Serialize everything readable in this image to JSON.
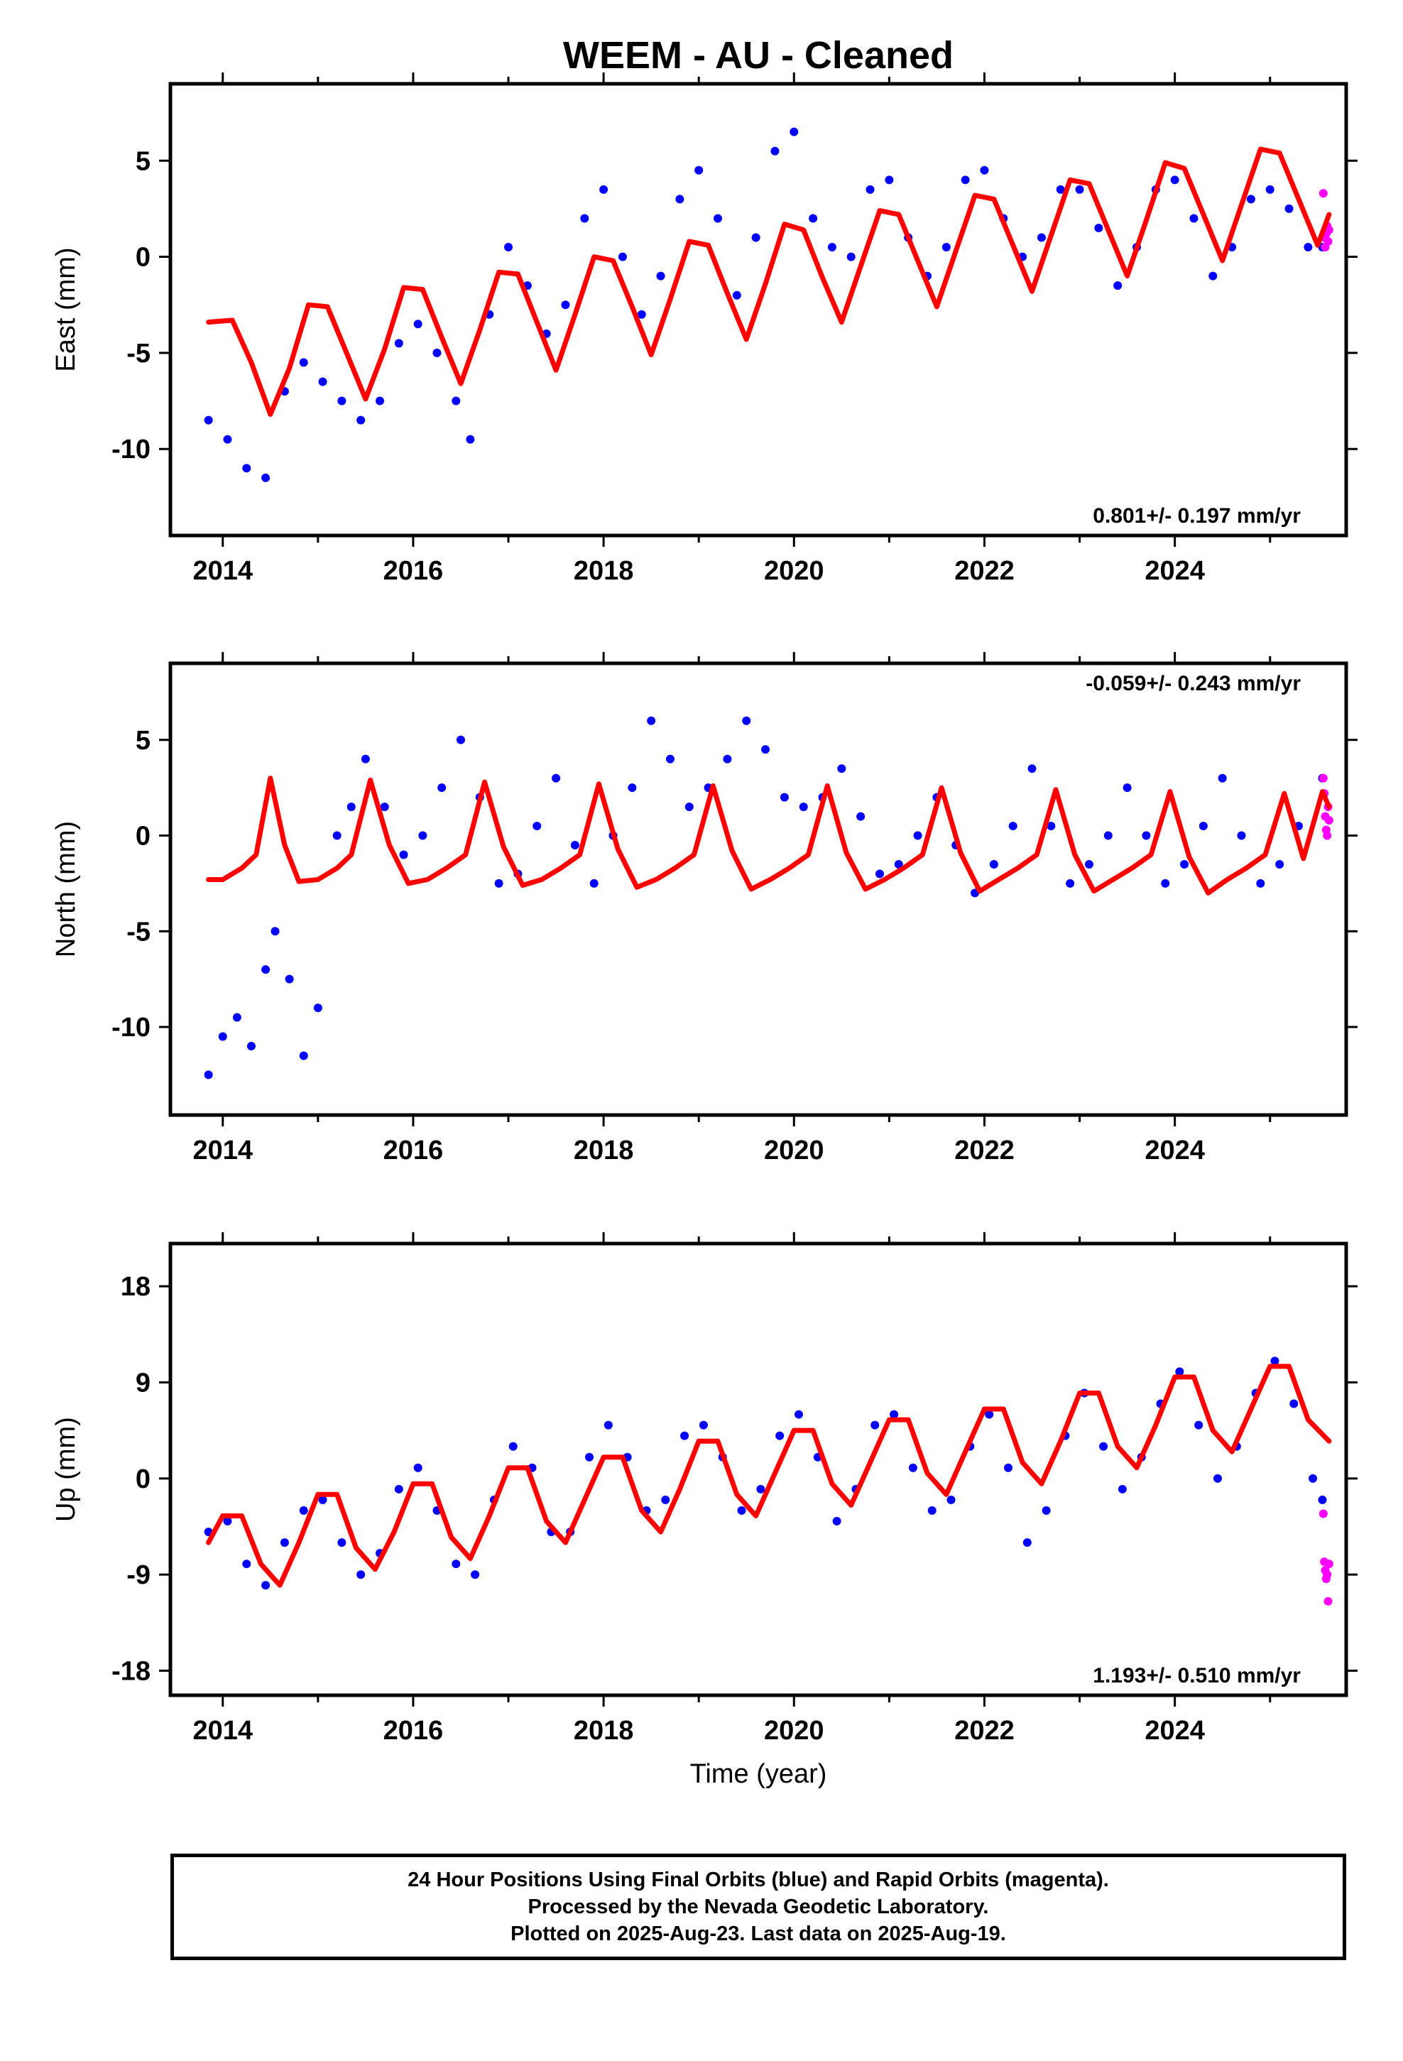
{
  "title": "WEEM  - AU - Cleaned",
  "colors": {
    "final": "#0000ff",
    "rapid": "#ff00ff",
    "model": "#ff0000"
  },
  "xlabel": "Time (year)",
  "caption": [
    "24 Hour Positions Using Final Orbits (blue) and Rapid Orbits (magenta).",
    "Processed by the Nevada Geodetic Laboratory.",
    "Plotted on 2025-Aug-23. Last data on 2025-Aug-19."
  ],
  "chart_data": [
    {
      "type": "scatter",
      "ylabel": "East (mm)",
      "xlim": [
        2013.45,
        2025.8
      ],
      "ylim": [
        -14.5,
        9.0
      ],
      "xticks": [
        2014,
        2016,
        2018,
        2020,
        2022,
        2024
      ],
      "yticks": [
        -10,
        -5,
        0,
        5
      ],
      "rate_label": "0.801+/- 0.197 mm/yr",
      "rate_position": "bottom-right",
      "series": [
        {
          "style": "points",
          "color": "final",
          "x": [
            2013.85,
            2014.05,
            2014.25,
            2014.45,
            2014.65,
            2014.85,
            2015.05,
            2015.25,
            2015.45,
            2015.65,
            2015.85,
            2016.05,
            2016.25,
            2016.45,
            2016.6,
            2016.8,
            2017.0,
            2017.2,
            2017.4,
            2017.6,
            2017.8,
            2018.0,
            2018.2,
            2018.4,
            2018.6,
            2018.8,
            2019.0,
            2019.2,
            2019.4,
            2019.6,
            2019.8,
            2020.0,
            2020.2,
            2020.4,
            2020.6,
            2020.8,
            2021.0,
            2021.2,
            2021.4,
            2021.6,
            2021.8,
            2022.0,
            2022.2,
            2022.4,
            2022.6,
            2022.8,
            2023.0,
            2023.2,
            2023.4,
            2023.6,
            2023.8,
            2024.0,
            2024.2,
            2024.4,
            2024.6,
            2024.8,
            2025.0,
            2025.2,
            2025.4,
            2025.55
          ],
          "y": [
            -8.5,
            -9.5,
            -11.0,
            -11.5,
            -7.0,
            -5.5,
            -6.5,
            -7.5,
            -8.5,
            -7.5,
            -4.5,
            -3.5,
            -5.0,
            -7.5,
            -9.5,
            -3.0,
            0.5,
            -1.5,
            -4.0,
            -2.5,
            2.0,
            3.5,
            0.0,
            -3.0,
            -1.0,
            3.0,
            4.5,
            2.0,
            -2.0,
            1.0,
            5.5,
            6.5,
            2.0,
            0.5,
            0.0,
            3.5,
            4.0,
            1.0,
            -1.0,
            0.5,
            4.0,
            4.5,
            2.0,
            0.0,
            1.0,
            3.5,
            3.5,
            1.5,
            -1.5,
            0.5,
            3.5,
            4.0,
            2.0,
            -1.0,
            0.5,
            3.0,
            3.5,
            2.5,
            0.5,
            0.5
          ]
        },
        {
          "style": "points",
          "color": "rapid",
          "x": [
            2025.56,
            2025.57,
            2025.58,
            2025.59,
            2025.6,
            2025.61,
            2025.62
          ],
          "y": [
            3.3,
            1.0,
            0.5,
            1.2,
            1.6,
            0.8,
            1.4
          ]
        },
        {
          "style": "line",
          "color": "model",
          "x": [
            2013.85,
            2014.1,
            2014.3,
            2014.5,
            2014.7,
            2014.9,
            2015.1,
            2015.3,
            2015.5,
            2015.7,
            2015.9,
            2016.1,
            2016.3,
            2016.5,
            2016.7,
            2016.9,
            2017.1,
            2017.3,
            2017.5,
            2017.7,
            2017.9,
            2018.1,
            2018.3,
            2018.5,
            2018.7,
            2018.9,
            2019.1,
            2019.3,
            2019.5,
            2019.7,
            2019.9,
            2020.1,
            2020.3,
            2020.5,
            2020.7,
            2020.9,
            2021.1,
            2021.3,
            2021.5,
            2021.7,
            2021.9,
            2022.1,
            2022.3,
            2022.5,
            2022.7,
            2022.9,
            2023.1,
            2023.3,
            2023.5,
            2023.7,
            2023.9,
            2024.1,
            2024.3,
            2024.5,
            2024.7,
            2024.9,
            2025.1,
            2025.3,
            2025.5,
            2025.62
          ],
          "y": [
            -3.4,
            -3.3,
            -5.5,
            -8.2,
            -5.8,
            -2.5,
            -2.6,
            -5.0,
            -7.4,
            -4.8,
            -1.6,
            -1.7,
            -4.2,
            -6.6,
            -3.8,
            -0.8,
            -0.9,
            -3.4,
            -5.9,
            -3.0,
            0.0,
            -0.2,
            -2.6,
            -5.1,
            -2.2,
            0.8,
            0.6,
            -1.9,
            -4.3,
            -1.4,
            1.7,
            1.4,
            -1.1,
            -3.4,
            -0.5,
            2.4,
            2.2,
            -0.2,
            -2.6,
            0.3,
            3.2,
            3.0,
            0.6,
            -1.8,
            1.1,
            4.0,
            3.8,
            1.4,
            -1.0,
            1.9,
            4.9,
            4.6,
            2.2,
            -0.2,
            2.7,
            5.6,
            5.4,
            3.0,
            0.6,
            2.2
          ]
        }
      ]
    },
    {
      "type": "scatter",
      "ylabel": "North (mm)",
      "xlim": [
        2013.45,
        2025.8
      ],
      "ylim": [
        -14.6,
        9.0
      ],
      "xticks": [
        2014,
        2016,
        2018,
        2020,
        2022,
        2024
      ],
      "yticks": [
        -10,
        -5,
        0,
        5
      ],
      "rate_label": "-0.059+/- 0.243 mm/yr",
      "rate_position": "top-right",
      "series": [
        {
          "style": "points",
          "color": "final",
          "x": [
            2013.85,
            2014.0,
            2014.15,
            2014.3,
            2014.45,
            2014.55,
            2014.7,
            2014.85,
            2015.0,
            2015.2,
            2015.35,
            2015.5,
            2015.7,
            2015.9,
            2016.1,
            2016.3,
            2016.5,
            2016.7,
            2016.9,
            2017.1,
            2017.3,
            2017.5,
            2017.7,
            2017.9,
            2018.1,
            2018.3,
            2018.5,
            2018.7,
            2018.9,
            2019.1,
            2019.3,
            2019.5,
            2019.7,
            2019.9,
            2020.1,
            2020.3,
            2020.5,
            2020.7,
            2020.9,
            2021.1,
            2021.3,
            2021.5,
            2021.7,
            2021.9,
            2022.1,
            2022.3,
            2022.5,
            2022.7,
            2022.9,
            2023.1,
            2023.3,
            2023.5,
            2023.7,
            2023.9,
            2024.1,
            2024.3,
            2024.5,
            2024.7,
            2024.9,
            2025.1,
            2025.3,
            2025.55
          ],
          "y": [
            -12.5,
            -10.5,
            -9.5,
            -11.0,
            -7.0,
            -5.0,
            -7.5,
            -11.5,
            -9.0,
            0.0,
            1.5,
            4.0,
            1.5,
            -1.0,
            0.0,
            2.5,
            5.0,
            2.0,
            -2.5,
            -2.0,
            0.5,
            3.0,
            -0.5,
            -2.5,
            0.0,
            2.5,
            6.0,
            4.0,
            1.5,
            2.5,
            4.0,
            6.0,
            4.5,
            2.0,
            1.5,
            2.0,
            3.5,
            1.0,
            -2.0,
            -1.5,
            0.0,
            2.0,
            -0.5,
            -3.0,
            -1.5,
            0.5,
            3.5,
            0.5,
            -2.5,
            -1.5,
            0.0,
            2.5,
            0.0,
            -2.5,
            -1.5,
            0.5,
            3.0,
            0.0,
            -2.5,
            -1.5,
            0.5,
            3.0
          ]
        },
        {
          "style": "points",
          "color": "rapid",
          "x": [
            2025.56,
            2025.57,
            2025.58,
            2025.59,
            2025.6,
            2025.61,
            2025.62
          ],
          "y": [
            3.0,
            2.2,
            1.0,
            0.3,
            0.0,
            1.5,
            0.8
          ]
        },
        {
          "style": "line",
          "color": "model",
          "x": [
            2013.85,
            2014.0,
            2014.2,
            2014.35,
            2014.5,
            2014.65,
            2014.8,
            2015.0,
            2015.2,
            2015.35,
            2015.55,
            2015.75,
            2015.95,
            2016.15,
            2016.35,
            2016.55,
            2016.75,
            2016.95,
            2017.15,
            2017.35,
            2017.55,
            2017.75,
            2017.95,
            2018.15,
            2018.35,
            2018.55,
            2018.75,
            2018.95,
            2019.15,
            2019.35,
            2019.55,
            2019.75,
            2019.95,
            2020.15,
            2020.35,
            2020.55,
            2020.75,
            2020.95,
            2021.15,
            2021.35,
            2021.55,
            2021.75,
            2021.95,
            2022.15,
            2022.35,
            2022.55,
            2022.75,
            2022.95,
            2023.15,
            2023.35,
            2023.55,
            2023.75,
            2023.95,
            2024.15,
            2024.35,
            2024.55,
            2024.75,
            2024.95,
            2025.15,
            2025.35,
            2025.55,
            2025.62
          ],
          "y": [
            -2.3,
            -2.3,
            -1.7,
            -1.0,
            3.0,
            -0.5,
            -2.4,
            -2.3,
            -1.7,
            -1.0,
            2.9,
            -0.5,
            -2.5,
            -2.3,
            -1.7,
            -1.0,
            2.8,
            -0.6,
            -2.6,
            -2.3,
            -1.7,
            -1.0,
            2.7,
            -0.7,
            -2.7,
            -2.3,
            -1.7,
            -1.0,
            2.6,
            -0.8,
            -2.8,
            -2.3,
            -1.7,
            -1.0,
            2.6,
            -0.9,
            -2.8,
            -2.3,
            -1.7,
            -1.0,
            2.5,
            -0.9,
            -2.9,
            -2.3,
            -1.7,
            -1.0,
            2.4,
            -1.0,
            -2.9,
            -2.3,
            -1.7,
            -1.0,
            2.3,
            -1.1,
            -3.0,
            -2.3,
            -1.7,
            -1.0,
            2.2,
            -1.2,
            2.3,
            1.5
          ]
        }
      ]
    },
    {
      "type": "scatter",
      "ylabel": "Up (mm)",
      "xlim": [
        2013.45,
        2025.8
      ],
      "ylim": [
        -20.3,
        22.0
      ],
      "xticks": [
        2014,
        2016,
        2018,
        2020,
        2022,
        2024
      ],
      "yticks": [
        -18,
        -9,
        0,
        9,
        18
      ],
      "rate_label": "1.193+/- 0.510 mm/yr",
      "rate_position": "bottom-right",
      "series": [
        {
          "style": "points",
          "color": "final",
          "x": [
            2013.85,
            2014.05,
            2014.25,
            2014.45,
            2014.65,
            2014.85,
            2015.05,
            2015.25,
            2015.45,
            2015.65,
            2015.85,
            2016.05,
            2016.25,
            2016.45,
            2016.65,
            2016.85,
            2017.05,
            2017.25,
            2017.45,
            2017.65,
            2017.85,
            2018.05,
            2018.25,
            2018.45,
            2018.65,
            2018.85,
            2019.05,
            2019.25,
            2019.45,
            2019.65,
            2019.85,
            2020.05,
            2020.25,
            2020.45,
            2020.65,
            2020.85,
            2021.05,
            2021.25,
            2021.45,
            2021.65,
            2021.85,
            2022.05,
            2022.25,
            2022.45,
            2022.65,
            2022.85,
            2023.05,
            2023.25,
            2023.45,
            2023.65,
            2023.85,
            2024.05,
            2024.25,
            2024.45,
            2024.65,
            2024.85,
            2025.05,
            2025.25,
            2025.45,
            2025.55
          ],
          "y": [
            -5.0,
            -4.0,
            -8.0,
            -10.0,
            -6.0,
            -3.0,
            -2.0,
            -6.0,
            -9.0,
            -7.0,
            -1.0,
            1.0,
            -3.0,
            -8.0,
            -9.0,
            -2.0,
            3.0,
            1.0,
            -5.0,
            -5.0,
            2.0,
            5.0,
            2.0,
            -3.0,
            -2.0,
            4.0,
            5.0,
            2.0,
            -3.0,
            -1.0,
            4.0,
            6.0,
            2.0,
            -4.0,
            -1.0,
            5.0,
            6.0,
            1.0,
            -3.0,
            -2.0,
            3.0,
            6.0,
            1.0,
            -6.0,
            -3.0,
            4.0,
            8.0,
            3.0,
            -1.0,
            2.0,
            7.0,
            10.0,
            5.0,
            0.0,
            3.0,
            8.0,
            11.0,
            7.0,
            0.0,
            -2.0
          ]
        },
        {
          "style": "points",
          "color": "rapid",
          "x": [
            2025.56,
            2025.57,
            2025.58,
            2025.59,
            2025.6,
            2025.61,
            2025.62
          ],
          "y": [
            -3.3,
            -7.8,
            -8.6,
            -9.4,
            -9.0,
            -11.5,
            -8.0
          ]
        },
        {
          "style": "line",
          "color": "model",
          "x": [
            2013.85,
            2014.0,
            2014.2,
            2014.4,
            2014.6,
            2014.8,
            2015.0,
            2015.2,
            2015.4,
            2015.6,
            2015.8,
            2016.0,
            2016.2,
            2016.4,
            2016.6,
            2016.8,
            2017.0,
            2017.2,
            2017.4,
            2017.6,
            2017.8,
            2018.0,
            2018.2,
            2018.4,
            2018.6,
            2018.8,
            2019.0,
            2019.2,
            2019.4,
            2019.6,
            2019.8,
            2020.0,
            2020.2,
            2020.4,
            2020.6,
            2020.8,
            2021.0,
            2021.2,
            2021.4,
            2021.6,
            2021.8,
            2022.0,
            2022.2,
            2022.4,
            2022.6,
            2022.8,
            2023.0,
            2023.2,
            2023.4,
            2023.6,
            2023.8,
            2024.0,
            2024.2,
            2024.4,
            2024.6,
            2024.8,
            2025.0,
            2025.2,
            2025.4,
            2025.62
          ],
          "y": [
            -6.0,
            -3.5,
            -3.5,
            -8.0,
            -10.0,
            -6.0,
            -1.5,
            -1.5,
            -6.5,
            -8.5,
            -5.0,
            -0.5,
            -0.5,
            -5.5,
            -7.5,
            -3.5,
            1.0,
            1.0,
            -4.0,
            -6.0,
            -2.0,
            2.0,
            2.0,
            -3.0,
            -5.0,
            -1.0,
            3.5,
            3.5,
            -1.5,
            -3.5,
            0.5,
            4.5,
            4.5,
            -0.5,
            -2.5,
            1.5,
            5.5,
            5.5,
            0.5,
            -1.5,
            2.5,
            6.5,
            6.5,
            1.5,
            -0.5,
            3.5,
            8.0,
            8.0,
            3.0,
            1.0,
            5.0,
            9.5,
            9.5,
            4.5,
            2.5,
            6.5,
            10.5,
            10.5,
            5.5,
            3.5
          ]
        }
      ]
    }
  ]
}
